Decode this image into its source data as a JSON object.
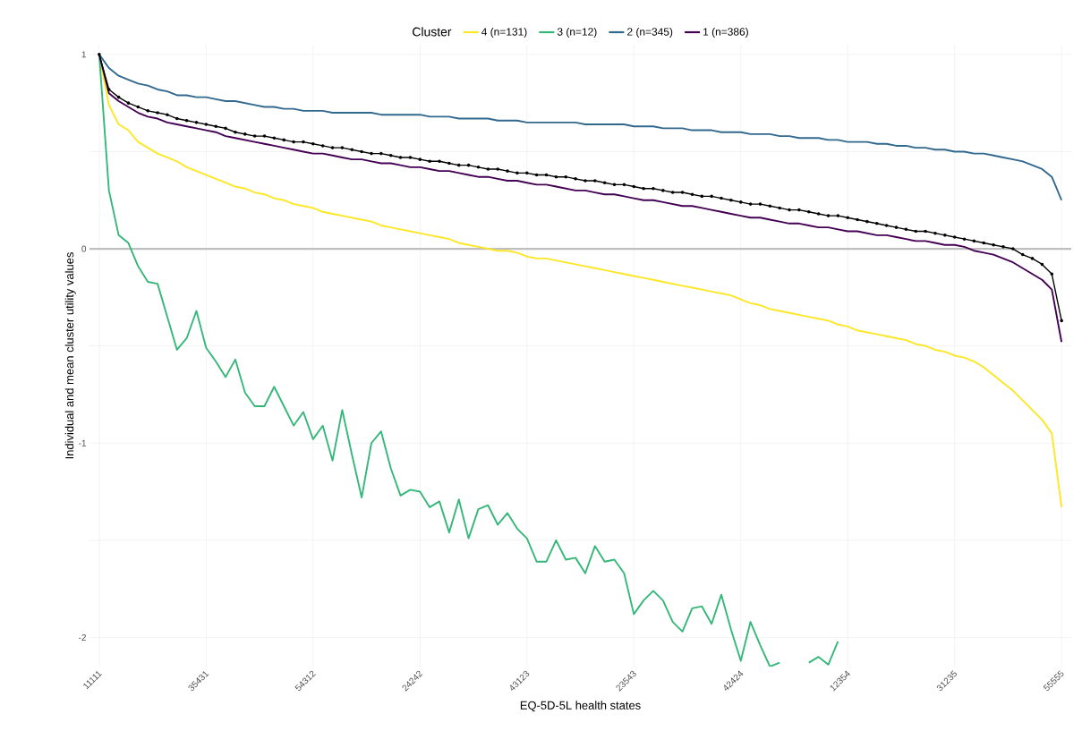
{
  "chart_data": {
    "type": "line",
    "xlabel": "EQ-5D-5L health states",
    "ylabel": "Individual and mean cluster utility values",
    "legend_title": "Cluster",
    "legend": "top",
    "grid": true,
    "line_style": "solid",
    "categories": [
      "11111",
      null,
      null,
      null,
      null,
      null,
      null,
      null,
      null,
      null,
      null,
      "35431",
      null,
      null,
      null,
      null,
      null,
      null,
      null,
      null,
      null,
      null,
      "54312",
      null,
      null,
      null,
      null,
      null,
      null,
      null,
      null,
      null,
      null,
      "24242",
      null,
      null,
      null,
      null,
      null,
      null,
      null,
      null,
      null,
      null,
      "43123",
      null,
      null,
      null,
      null,
      null,
      null,
      null,
      null,
      null,
      null,
      "23543",
      null,
      null,
      null,
      null,
      null,
      null,
      null,
      null,
      null,
      null,
      "42424",
      null,
      null,
      null,
      null,
      null,
      null,
      null,
      null,
      null,
      null,
      "12354",
      null,
      null,
      null,
      null,
      null,
      null,
      null,
      null,
      null,
      null,
      "31235",
      null,
      null,
      null,
      null,
      null,
      null,
      null,
      null,
      null,
      null,
      "55555"
    ],
    "ylim": [
      -2.15,
      1.05
    ],
    "yticks": [
      -2,
      {
        "value": -1.5,
        "label": null
      },
      -1,
      {
        "value": -0.5,
        "label": null
      },
      0,
      {
        "value": 0.5,
        "label": null
      },
      1
    ],
    "ref_lines": [
      {
        "axis": "y",
        "value": 0,
        "color": "#bebebe"
      }
    ],
    "series": [
      {
        "name": "4 (n=131)",
        "color": "#fde725",
        "marker": "none",
        "values": [
          1.0,
          0.74,
          0.64,
          0.61,
          0.55,
          0.52,
          0.49,
          0.47,
          0.45,
          0.42,
          0.4,
          0.38,
          0.36,
          0.34,
          0.32,
          0.31,
          0.29,
          0.28,
          0.26,
          0.25,
          0.23,
          0.22,
          0.21,
          0.19,
          0.18,
          0.17,
          0.16,
          0.15,
          0.14,
          0.12,
          0.11,
          0.1,
          0.09,
          0.08,
          0.07,
          0.06,
          0.05,
          0.03,
          0.02,
          0.01,
          0.0,
          -0.01,
          -0.01,
          -0.02,
          -0.04,
          -0.05,
          -0.05,
          -0.06,
          -0.07,
          -0.08,
          -0.09,
          -0.1,
          -0.11,
          -0.12,
          -0.13,
          -0.14,
          -0.15,
          -0.16,
          -0.17,
          -0.18,
          -0.19,
          -0.2,
          -0.21,
          -0.22,
          -0.23,
          -0.24,
          -0.26,
          -0.28,
          -0.29,
          -0.31,
          -0.32,
          -0.33,
          -0.34,
          -0.35,
          -0.36,
          -0.37,
          -0.39,
          -0.4,
          -0.42,
          -0.43,
          -0.44,
          -0.45,
          -0.46,
          -0.47,
          -0.49,
          -0.5,
          -0.52,
          -0.53,
          -0.55,
          -0.56,
          -0.58,
          -0.61,
          -0.65,
          -0.69,
          -0.73,
          -0.78,
          -0.83,
          -0.88,
          -0.95,
          -1.33
        ]
      },
      {
        "name": "3 (n=12)",
        "color": "#35b779",
        "marker": "none",
        "values": [
          1.0,
          0.3,
          0.07,
          0.03,
          -0.09,
          -0.17,
          -0.18,
          -0.35,
          -0.52,
          -0.46,
          -0.32,
          -0.51,
          -0.58,
          -0.66,
          -0.57,
          -0.74,
          -0.81,
          -0.81,
          -0.71,
          -0.81,
          -0.91,
          -0.84,
          -0.98,
          -0.91,
          -1.09,
          -0.83,
          -1.06,
          -1.28,
          -1.0,
          -0.94,
          -1.13,
          -1.27,
          -1.24,
          -1.25,
          -1.33,
          -1.3,
          -1.46,
          -1.29,
          -1.49,
          -1.34,
          -1.32,
          -1.42,
          -1.36,
          -1.44,
          -1.49,
          -1.61,
          -1.61,
          -1.5,
          -1.6,
          -1.59,
          -1.67,
          -1.53,
          -1.61,
          -1.6,
          -1.67,
          -1.88,
          -1.81,
          -1.76,
          -1.81,
          -1.92,
          -1.97,
          -1.85,
          -1.84,
          -1.93,
          -1.78,
          -1.96,
          -2.12,
          -1.92,
          -2.04,
          -2.15,
          -2.13,
          null,
          null,
          -2.13,
          -2.1,
          -2.14,
          -2.02,
          null,
          null,
          null,
          null,
          null,
          null,
          null,
          null,
          null,
          null,
          null,
          null,
          null,
          null,
          null,
          null,
          null,
          null,
          null,
          null,
          null,
          null,
          null
        ]
      },
      {
        "name": "2 (n=345)",
        "color": "#31688e",
        "marker": "none",
        "values": [
          1.0,
          0.93,
          0.89,
          0.87,
          0.85,
          0.84,
          0.82,
          0.81,
          0.79,
          0.79,
          0.78,
          0.78,
          0.77,
          0.76,
          0.76,
          0.75,
          0.74,
          0.73,
          0.73,
          0.72,
          0.72,
          0.71,
          0.71,
          0.71,
          0.7,
          0.7,
          0.7,
          0.7,
          0.7,
          0.69,
          0.69,
          0.69,
          0.69,
          0.69,
          0.68,
          0.68,
          0.68,
          0.67,
          0.67,
          0.67,
          0.67,
          0.66,
          0.66,
          0.66,
          0.65,
          0.65,
          0.65,
          0.65,
          0.65,
          0.65,
          0.64,
          0.64,
          0.64,
          0.64,
          0.64,
          0.63,
          0.63,
          0.63,
          0.62,
          0.62,
          0.62,
          0.61,
          0.61,
          0.61,
          0.6,
          0.6,
          0.6,
          0.59,
          0.59,
          0.59,
          0.58,
          0.58,
          0.57,
          0.57,
          0.57,
          0.56,
          0.56,
          0.55,
          0.55,
          0.55,
          0.54,
          0.54,
          0.53,
          0.53,
          0.52,
          0.52,
          0.51,
          0.51,
          0.5,
          0.5,
          0.49,
          0.49,
          0.48,
          0.47,
          0.46,
          0.45,
          0.43,
          0.41,
          0.37,
          0.25
        ]
      },
      {
        "name": "1 (n=386)",
        "color": "#440154",
        "marker": "none",
        "values": [
          1.0,
          0.8,
          0.76,
          0.73,
          0.7,
          0.68,
          0.67,
          0.65,
          0.64,
          0.63,
          0.62,
          0.61,
          0.6,
          0.58,
          0.57,
          0.56,
          0.55,
          0.54,
          0.53,
          0.52,
          0.51,
          0.5,
          0.49,
          0.49,
          0.48,
          0.47,
          0.46,
          0.46,
          0.45,
          0.44,
          0.44,
          0.43,
          0.42,
          0.42,
          0.41,
          0.4,
          0.4,
          0.39,
          0.38,
          0.37,
          0.37,
          0.36,
          0.35,
          0.35,
          0.34,
          0.33,
          0.33,
          0.32,
          0.31,
          0.3,
          0.3,
          0.29,
          0.28,
          0.28,
          0.27,
          0.26,
          0.25,
          0.25,
          0.24,
          0.23,
          0.22,
          0.22,
          0.21,
          0.2,
          0.19,
          0.18,
          0.17,
          0.16,
          0.16,
          0.15,
          0.14,
          0.13,
          0.13,
          0.12,
          0.11,
          0.11,
          0.1,
          0.09,
          0.09,
          0.08,
          0.07,
          0.07,
          0.06,
          0.05,
          0.04,
          0.04,
          0.03,
          0.02,
          0.02,
          0.01,
          -0.01,
          -0.02,
          -0.03,
          -0.05,
          -0.07,
          -0.1,
          -0.13,
          -0.16,
          -0.21,
          -0.48
        ]
      },
      {
        "color": "#000000",
        "marker": "circle",
        "values": [
          1.0,
          0.82,
          0.78,
          0.75,
          0.73,
          0.71,
          0.7,
          0.69,
          0.67,
          0.66,
          0.65,
          0.64,
          0.63,
          0.62,
          0.6,
          0.59,
          0.58,
          0.58,
          0.57,
          0.56,
          0.55,
          0.55,
          0.54,
          0.53,
          0.52,
          0.52,
          0.51,
          0.5,
          0.49,
          0.49,
          0.48,
          0.47,
          0.47,
          0.46,
          0.45,
          0.45,
          0.44,
          0.43,
          0.43,
          0.42,
          0.41,
          0.41,
          0.4,
          0.39,
          0.39,
          0.38,
          0.38,
          0.37,
          0.37,
          0.36,
          0.35,
          0.35,
          0.34,
          0.33,
          0.33,
          0.32,
          0.31,
          0.31,
          0.3,
          0.29,
          0.29,
          0.28,
          0.27,
          0.27,
          0.26,
          0.25,
          0.24,
          0.23,
          0.23,
          0.22,
          0.21,
          0.2,
          0.2,
          0.19,
          0.18,
          0.17,
          0.17,
          0.16,
          0.15,
          0.14,
          0.13,
          0.12,
          0.11,
          0.1,
          0.09,
          0.09,
          0.08,
          0.07,
          0.06,
          0.05,
          0.04,
          0.03,
          0.02,
          0.01,
          0.0,
          -0.03,
          -0.05,
          -0.08,
          -0.13,
          -0.37
        ]
      }
    ]
  }
}
